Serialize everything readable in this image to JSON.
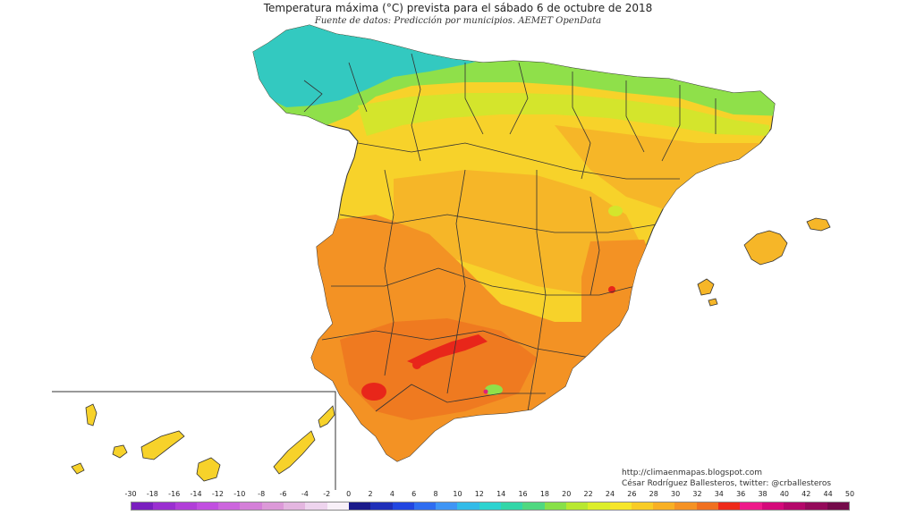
{
  "header": {
    "title": "Temperatura máxima (°C) prevista para el sábado 6 de octubre de 2018",
    "subtitle": "Fuente de datos: Predicción por municipios. AEMET OpenData"
  },
  "credits": {
    "website": "http://climaenmapas.blogspot.com",
    "author": "César Rodríguez Ballesteros, twitter: @crballesteros"
  },
  "legend": {
    "labels": [
      "-30",
      "-18",
      "-16",
      "-14",
      "-12",
      "-10",
      "-8",
      "-6",
      "-4",
      "-2",
      "0",
      "2",
      "4",
      "6",
      "8",
      "10",
      "12",
      "14",
      "16",
      "18",
      "20",
      "22",
      "24",
      "26",
      "28",
      "30",
      "32",
      "34",
      "36",
      "38",
      "40",
      "42",
      "44",
      "50"
    ],
    "colors": [
      "#7a1fbf",
      "#9a2fd0",
      "#b13fd8",
      "#c14fe0",
      "#cc66dd",
      "#d47fd8",
      "#dc99d8",
      "#e4b6e0",
      "#eed4ee",
      "#f8f0f8",
      "#1a1a8a",
      "#1f2fb8",
      "#2246e0",
      "#2f6df0",
      "#3f95f5",
      "#33bbe8",
      "#2dd3d0",
      "#33d6a8",
      "#4fd880",
      "#88e048",
      "#b8e830",
      "#dcee2a",
      "#f6e62a",
      "#f8cc26",
      "#f8b024",
      "#f59224",
      "#f07020",
      "#ee2a1a",
      "#ee1a8a",
      "#d40a7a",
      "#b4086a",
      "#940a5a",
      "#740a4a"
    ]
  },
  "map": {
    "regions": [
      "Peninsula",
      "Islas Baleares",
      "Islas Canarias"
    ],
    "colors": {
      "cool_cyan": "#33c9c0",
      "cool_green": "#8fe04a",
      "yellow_green": "#d4e52c",
      "yellow": "#f7d22a",
      "yellow_orange": "#f6b628",
      "orange": "#f39224",
      "deep_orange": "#ef7a20",
      "red": "#e8261a",
      "pink": "#e0207a",
      "border": "#333333"
    }
  }
}
